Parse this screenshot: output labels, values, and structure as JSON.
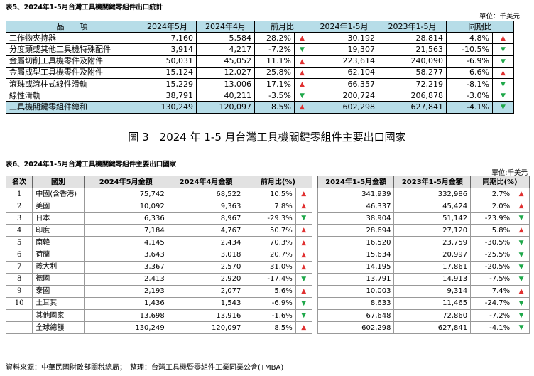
{
  "t5": {
    "title": "表5、2024年1-5月台灣工具機關鍵零組件出口統計",
    "unit": "單位：千美元",
    "headers": [
      "品　　項",
      "2024年5月",
      "2024年4月",
      "前月比",
      "2024年1-5月",
      "2023年1-5月",
      "同期比"
    ],
    "rows": [
      {
        "name": "工作物夾持器",
        "may": "7,160",
        "apr": "5,584",
        "mom": "28.2%",
        "mom_dir": "up",
        "ytd24": "30,192",
        "ytd23": "28,814",
        "yoy": "4.8%",
        "yoy_dir": "up"
      },
      {
        "name": "分度頭或其他工具機特殊配件",
        "may": "3,914",
        "apr": "4,217",
        "mom": "-7.2%",
        "mom_dir": "down",
        "ytd24": "19,307",
        "ytd23": "21,563",
        "yoy": "-10.5%",
        "yoy_dir": "down"
      },
      {
        "name": "金屬切削工具機零件及附件",
        "may": "50,031",
        "apr": "45,052",
        "mom": "11.1%",
        "mom_dir": "up",
        "ytd24": "223,614",
        "ytd23": "240,090",
        "yoy": "-6.9%",
        "yoy_dir": "down"
      },
      {
        "name": "金屬成型工具機零件及附件",
        "may": "15,124",
        "apr": "12,027",
        "mom": "25.8%",
        "mom_dir": "up",
        "ytd24": "62,104",
        "ytd23": "58,277",
        "yoy": "6.6%",
        "yoy_dir": "up"
      },
      {
        "name": "滾珠或滾柱式線性滑軌",
        "may": "15,229",
        "apr": "13,006",
        "mom": "17.1%",
        "mom_dir": "up",
        "ytd24": "66,357",
        "ytd23": "72,219",
        "yoy": "-8.1%",
        "yoy_dir": "down"
      },
      {
        "name": "線性滑軌",
        "may": "38,791",
        "apr": "40,211",
        "mom": "-3.5%",
        "mom_dir": "down",
        "ytd24": "200,724",
        "ytd23": "206,878",
        "yoy": "-3.0%",
        "yoy_dir": "down"
      }
    ],
    "total": {
      "name": "工具機關鍵零組件總和",
      "may": "130,249",
      "apr": "120,097",
      "mom": "8.5%",
      "mom_dir": "up",
      "ytd24": "602,298",
      "ytd23": "627,841",
      "yoy": "-4.1%",
      "yoy_dir": "down"
    }
  },
  "figure_caption": "圖 3　2024 年 1-5 月台灣工具機關鍵零組件主要出口國家",
  "t6": {
    "title": "表6、2024年1-5月台灣工具機關鍵零組件主要出口國家",
    "unit": "單位:千美元",
    "headers": [
      "名次",
      "國別",
      "2024年5月金額",
      "2024年4月金額",
      "前月比(%)",
      "2024年1-5月金額",
      "2023年1-5月金額",
      "同期比(%)"
    ],
    "rows": [
      {
        "rank": "1",
        "country": "中國(含香港)",
        "may": "75,742",
        "apr": "68,522",
        "mom": "10.5%",
        "mom_dir": "up",
        "ytd24": "341,939",
        "ytd23": "332,986",
        "yoy": "2.7%",
        "yoy_dir": "up"
      },
      {
        "rank": "2",
        "country": "美國",
        "may": "10,092",
        "apr": "9,363",
        "mom": "7.8%",
        "mom_dir": "up",
        "ytd24": "46,337",
        "ytd23": "45,424",
        "yoy": "2.0%",
        "yoy_dir": "up"
      },
      {
        "rank": "3",
        "country": "日本",
        "may": "6,336",
        "apr": "8,967",
        "mom": "-29.3%",
        "mom_dir": "down",
        "ytd24": "38,904",
        "ytd23": "51,142",
        "yoy": "-23.9%",
        "yoy_dir": "down"
      },
      {
        "rank": "4",
        "country": "印度",
        "may": "7,184",
        "apr": "4,767",
        "mom": "50.7%",
        "mom_dir": "up",
        "ytd24": "28,694",
        "ytd23": "27,120",
        "yoy": "5.8%",
        "yoy_dir": "up"
      },
      {
        "rank": "5",
        "country": "南韓",
        "may": "4,145",
        "apr": "2,434",
        "mom": "70.3%",
        "mom_dir": "up",
        "ytd24": "16,520",
        "ytd23": "23,759",
        "yoy": "-30.5%",
        "yoy_dir": "down"
      },
      {
        "rank": "6",
        "country": "荷蘭",
        "may": "3,643",
        "apr": "3,018",
        "mom": "20.7%",
        "mom_dir": "up",
        "ytd24": "15,634",
        "ytd23": "20,997",
        "yoy": "-25.5%",
        "yoy_dir": "down"
      },
      {
        "rank": "7",
        "country": "義大利",
        "may": "3,367",
        "apr": "2,570",
        "mom": "31.0%",
        "mom_dir": "up",
        "ytd24": "14,195",
        "ytd23": "17,861",
        "yoy": "-20.5%",
        "yoy_dir": "down"
      },
      {
        "rank": "8",
        "country": "德國",
        "may": "2,413",
        "apr": "2,920",
        "mom": "-17.4%",
        "mom_dir": "down",
        "ytd24": "13,791",
        "ytd23": "14,913",
        "yoy": "-7.5%",
        "yoy_dir": "down"
      },
      {
        "rank": "9",
        "country": "泰國",
        "may": "2,193",
        "apr": "2,077",
        "mom": "5.6%",
        "mom_dir": "up",
        "ytd24": "10,003",
        "ytd23": "9,314",
        "yoy": "7.4%",
        "yoy_dir": "up"
      },
      {
        "rank": "10",
        "country": "土耳其",
        "may": "1,436",
        "apr": "1,543",
        "mom": "-6.9%",
        "mom_dir": "down",
        "ytd24": "8,633",
        "ytd23": "11,465",
        "yoy": "-24.7%",
        "yoy_dir": "down"
      },
      {
        "rank": "",
        "country": "其他國家",
        "may": "13,698",
        "apr": "13,916",
        "mom": "-1.6%",
        "mom_dir": "down",
        "ytd24": "67,648",
        "ytd23": "72,860",
        "yoy": "-7.2%",
        "yoy_dir": "down"
      },
      {
        "rank": "",
        "country": "全球總額",
        "may": "130,249",
        "apr": "120,097",
        "mom": "8.5%",
        "mom_dir": "up",
        "ytd24": "602,298",
        "ytd23": "627,841",
        "yoy": "-4.1%",
        "yoy_dir": "down"
      }
    ]
  },
  "source": "資料來源：中華民國財政部關稅總局；　整理：台灣工具機暨零組件工業同業公會(TMBA)",
  "arrow_icons": {
    "up": "up-triangle-icon",
    "down": "down-triangle-icon"
  },
  "colors": {
    "up": "#e03030",
    "down": "#1fa84a",
    "header_blue": "#b7dde8",
    "header_gray": "#e2e2e2"
  }
}
